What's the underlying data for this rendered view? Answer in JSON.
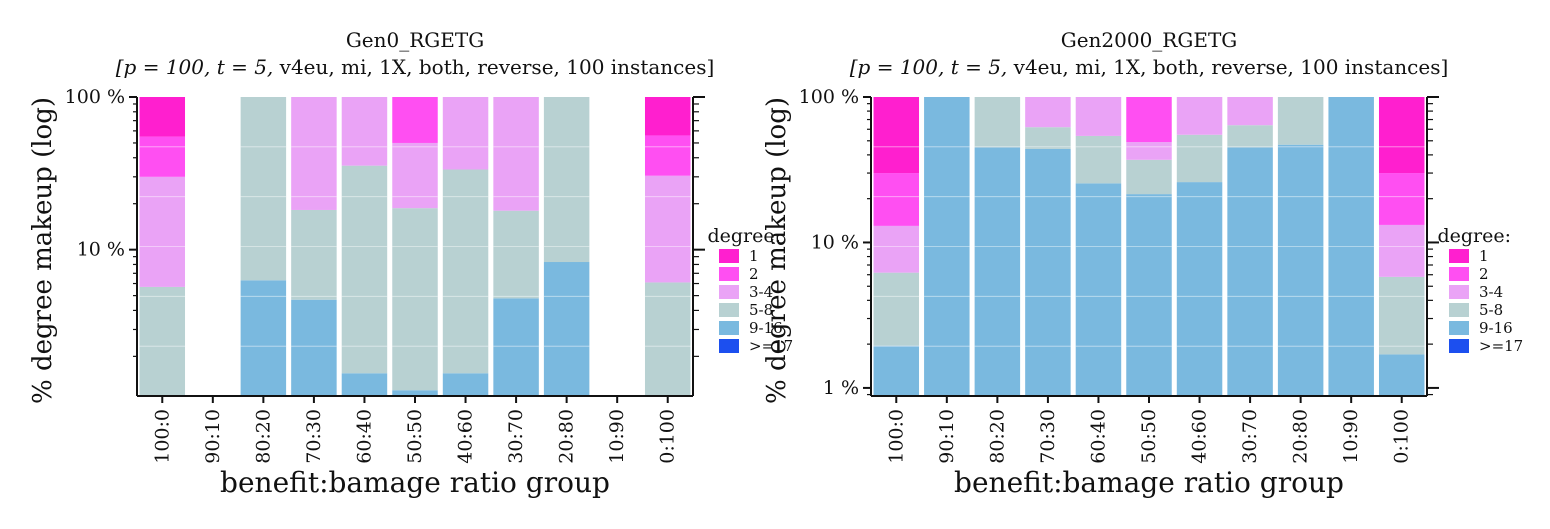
{
  "colors": {
    "1": "#ff1fcf",
    "2": "#ff4ff2",
    "3-4": "#eaa3f6",
    "5-8": "#b8d1d2",
    "9-16": "#7ab9df",
    ">=17": "#1c4fef"
  },
  "chart_data": [
    {
      "type": "bar",
      "title": "Gen0_RGETG",
      "subtitle_math": "[p = 100, t = 5,",
      "subtitle_text": " v4eu, mi, 1X, both, reverse, 100 instances]",
      "xlabel": "benefit:bamage ratio group",
      "ylabel": "% degree makeup (log)",
      "yscale": "log",
      "ylim": [
        1.1,
        100
      ],
      "yticks": [
        {
          "value": 10,
          "label": "10 %"
        },
        {
          "value": 100,
          "label": "100 %"
        }
      ],
      "categories": [
        "100:0",
        "90:10",
        "80:20",
        "70:30",
        "60:40",
        "50:50",
        "40:60",
        "30:70",
        "20:80",
        "10:90",
        "0:100"
      ],
      "legend": {
        "title": "degree:",
        "items": [
          "1",
          "2",
          "3-4",
          "5-8",
          "9-16",
          ">=17"
        ],
        "placement": "right"
      },
      "series": [
        {
          "name": "9-16",
          "values": [
            1.1,
            0,
            6.3,
            4.7,
            1.55,
            1.2,
            1.55,
            4.8,
            8.3,
            0,
            1.1
          ]
        },
        {
          "name": "5-8",
          "values": [
            5.7,
            0,
            100,
            18.2,
            35.5,
            18.7,
            33.5,
            18,
            100,
            0,
            6.1
          ]
        },
        {
          "name": "3-4",
          "values": [
            30,
            0,
            100,
            100,
            100,
            50,
            100,
            100,
            100,
            0,
            30.5
          ]
        },
        {
          "name": "2",
          "values": [
            55,
            0,
            100,
            100,
            100,
            100,
            100,
            100,
            100,
            0,
            56
          ]
        },
        {
          "name": "1",
          "values": [
            100,
            0,
            100,
            100,
            100,
            100,
            100,
            100,
            100,
            0,
            100
          ]
        }
      ]
    },
    {
      "type": "bar",
      "title": "Gen2000_RGETG",
      "subtitle_math": "[p = 100, t = 5,",
      "subtitle_text": " v4eu, mi, 1X, both, reverse, 100 instances]",
      "xlabel": "benefit:bamage ratio group",
      "ylabel": "% degree makeup (log)",
      "yscale": "log",
      "ylim": [
        0.88,
        100
      ],
      "yticks": [
        {
          "value": 1,
          "label": "1 %"
        },
        {
          "value": 10,
          "label": "10 %"
        },
        {
          "value": 100,
          "label": "100 %"
        }
      ],
      "categories": [
        "100:0",
        "90:10",
        "80:20",
        "70:30",
        "60:40",
        "50:50",
        "40:60",
        "30:70",
        "20:80",
        "10:90",
        "0:100"
      ],
      "legend": {
        "title": "degree:",
        "items": [
          "1",
          "2",
          "3-4",
          "5-8",
          "9-16",
          ">=17"
        ],
        "placement": "right"
      },
      "series": [
        {
          "name": "9-16",
          "values": [
            1.95,
            100,
            45,
            44,
            25.5,
            21.5,
            26,
            45,
            47,
            100,
            1.7
          ]
        },
        {
          "name": "5-8",
          "values": [
            6.2,
            100,
            100,
            62,
            54,
            37,
            55,
            64,
            100,
            100,
            5.8
          ]
        },
        {
          "name": "3-4",
          "values": [
            13,
            100,
            100,
            100,
            100,
            49,
            100,
            100,
            100,
            100,
            13.2
          ]
        },
        {
          "name": "2",
          "values": [
            30,
            100,
            100,
            100,
            100,
            100,
            100,
            100,
            100,
            100,
            30
          ]
        },
        {
          "name": "1",
          "values": [
            100,
            100,
            100,
            100,
            100,
            100,
            100,
            100,
            100,
            100,
            100
          ]
        }
      ]
    }
  ]
}
